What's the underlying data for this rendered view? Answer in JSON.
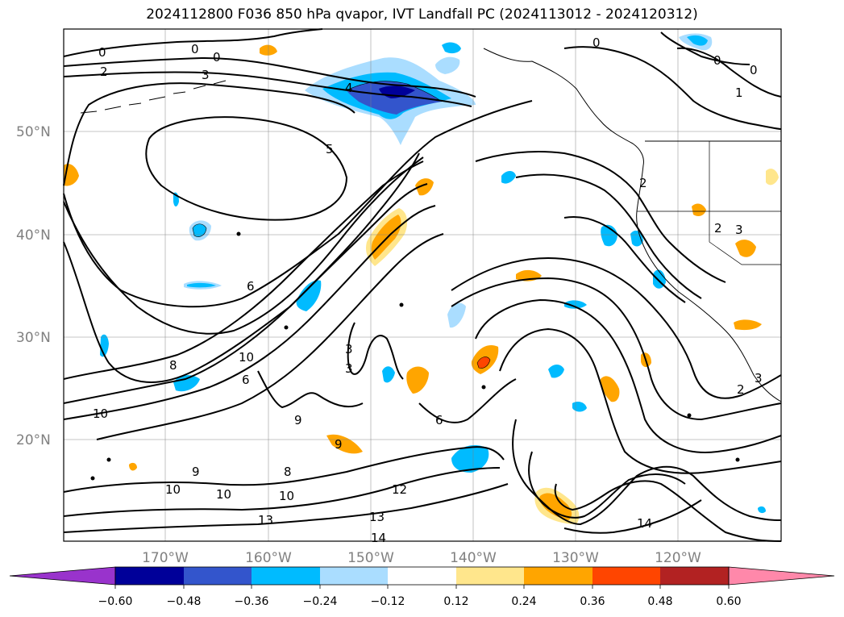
{
  "title": "2024112800 F036 850 hPa qvapor, IVT Landfall PC (2024113012 - 2024120312)",
  "lat_ticks": [
    "20°N",
    "30°N",
    "40°N",
    "50°N"
  ],
  "lon_ticks": [
    "170°W",
    "160°W",
    "150°W",
    "140°W",
    "130°W",
    "120°W"
  ],
  "colorbar": {
    "tick_labels": [
      "−0.60",
      "−0.48",
      "−0.36",
      "−0.24",
      "−0.12",
      "0.12",
      "0.24",
      "0.36",
      "0.48",
      "0.60"
    ],
    "colors": [
      "#9933cc",
      "#000099",
      "#3355cc",
      "#00bbff",
      "#aaddff",
      "#ffffff",
      "#ffe68c",
      "#ffa500",
      "#ff4500",
      "#b22222",
      "#ff88aa"
    ]
  },
  "contour_labels": [
    "0",
    "0",
    "0",
    "0",
    "0",
    "0",
    "1",
    "2",
    "3",
    "4",
    "5",
    "6",
    "6",
    "6",
    "8",
    "8",
    "9",
    "9",
    "9",
    "10",
    "10",
    "10",
    "10",
    "10",
    "12",
    "13",
    "13",
    "14",
    "14",
    "2",
    "2",
    "3",
    "3",
    "3",
    "2",
    "3"
  ]
}
